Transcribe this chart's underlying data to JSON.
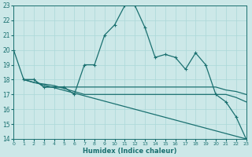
{
  "xlabel": "Humidex (Indice chaleur)",
  "bg_color": "#cce8e8",
  "grid_color": "#aad8d8",
  "line_color": "#1a7070",
  "xlim": [
    0,
    23
  ],
  "ylim": [
    14,
    23
  ],
  "xticks": [
    0,
    1,
    2,
    3,
    4,
    5,
    6,
    7,
    8,
    9,
    10,
    11,
    12,
    13,
    14,
    15,
    16,
    17,
    18,
    19,
    20,
    21,
    22,
    23
  ],
  "yticks": [
    14,
    15,
    16,
    17,
    18,
    19,
    20,
    21,
    22,
    23
  ],
  "curve1_x": [
    0,
    1,
    2,
    3,
    4,
    5,
    6,
    7,
    8,
    9,
    10,
    11,
    12,
    13,
    14,
    15,
    16,
    17,
    18,
    19,
    20,
    21,
    22,
    23
  ],
  "curve1_y": [
    20,
    18,
    18,
    17.5,
    17.5,
    17.5,
    17,
    19,
    19,
    21,
    21.7,
    23,
    23,
    21.5,
    19.5,
    19.7,
    19.5,
    18.7,
    19.8,
    19,
    17,
    16.5,
    15.5,
    14
  ],
  "curve2_x": [
    1,
    2,
    3,
    4,
    5,
    6,
    7,
    8,
    9,
    10,
    11,
    12,
    13,
    14,
    15,
    16,
    17,
    18,
    19,
    20,
    21,
    22,
    23
  ],
  "curve2_y": [
    18,
    18,
    17.5,
    17.5,
    17.5,
    17.5,
    17.5,
    17.5,
    17.5,
    17.5,
    17.5,
    17.5,
    17.5,
    17.5,
    17.5,
    17.5,
    17.5,
    17.5,
    17.5,
    17.5,
    17.3,
    17.2,
    17.0
  ],
  "curve3_x": [
    1,
    2,
    3,
    4,
    5,
    6,
    7,
    8,
    9,
    10,
    11,
    12,
    13,
    14,
    15,
    16,
    17,
    18,
    19,
    20,
    21,
    22,
    23
  ],
  "curve3_y": [
    18,
    17.8,
    17.7,
    17.6,
    17.4,
    17.2,
    17.0,
    17.0,
    17.0,
    17.0,
    17.0,
    17.0,
    17.0,
    17.0,
    17.0,
    17.0,
    17.0,
    17.0,
    17.0,
    17.0,
    17.0,
    16.8,
    16.5
  ],
  "curve4_x": [
    1,
    23
  ],
  "curve4_y": [
    18,
    14
  ]
}
